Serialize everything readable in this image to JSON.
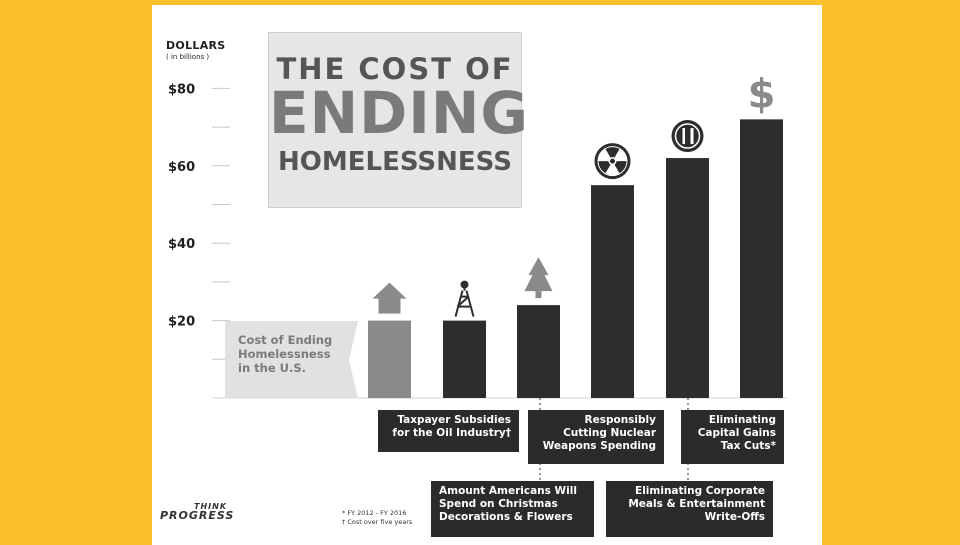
{
  "chart_data": {
    "type": "bar",
    "title_line1": "THE COST OF",
    "title_line2": "ENDING",
    "title_line3": "HOMELESSNESS",
    "y_units_line1": "DOLLARS",
    "y_units_line2": "( in billions )",
    "ylim": [
      0,
      90
    ],
    "y_ticks": [
      0,
      10,
      20,
      30,
      40,
      50,
      60,
      70,
      80
    ],
    "y_tick_labels": [
      "",
      "",
      "$20",
      "",
      "$40",
      "",
      "$60",
      "",
      "$80"
    ],
    "categories": [
      "Cost of Ending Homelessness in the U.S.",
      "Taxpayer Subsidies for the Oil Industry†",
      "Amount Americans Will Spend on Christmas Decorations & Flowers",
      "Responsibly Cutting Nuclear Weapons Spending",
      "Eliminating Corporate Meals & Entertainment Write-Offs",
      "Eliminating Capital Gains Tax Cuts*"
    ],
    "values": [
      20,
      20,
      24,
      55,
      62,
      72
    ],
    "bar_colors": [
      "#8a8a8a",
      "#2d2d2d",
      "#2d2d2d",
      "#2d2d2d",
      "#2d2d2d",
      "#2d2d2d"
    ],
    "icons": [
      "house-icon",
      "oil-derrick-icon",
      "christmas-tree-icon",
      "radiation-icon",
      "fork-knife-icon",
      "dollar-sign-icon"
    ],
    "labels": {
      "homeless": [
        "Cost of Ending",
        "Homelessness",
        "in the U.S."
      ],
      "oil": [
        "Taxpayer Subsidies",
        "for the Oil Industry†"
      ],
      "christmas": [
        "Amount Americans Will",
        "Spend on Christmas",
        "Decorations & Flowers"
      ],
      "nuclear": [
        "Responsibly",
        "Cutting Nuclear",
        "Weapons Spending"
      ],
      "meals": [
        "Eliminating Corporate",
        "Meals & Entertainment",
        "Write-Offs"
      ],
      "capgains": [
        "Eliminating",
        "Capital Gains",
        "Tax Cuts*"
      ]
    },
    "footnotes": [
      "* FY 2012 - FY 2016",
      "† Cost over five years"
    ]
  },
  "logo": {
    "line1": "THINK",
    "line2": "PROGRESS"
  },
  "colors": {
    "background": "#fbc12a",
    "bar_dark": "#2d2d2d",
    "bar_gray": "#8a8a8a",
    "label_light": "#e1e1e1"
  }
}
